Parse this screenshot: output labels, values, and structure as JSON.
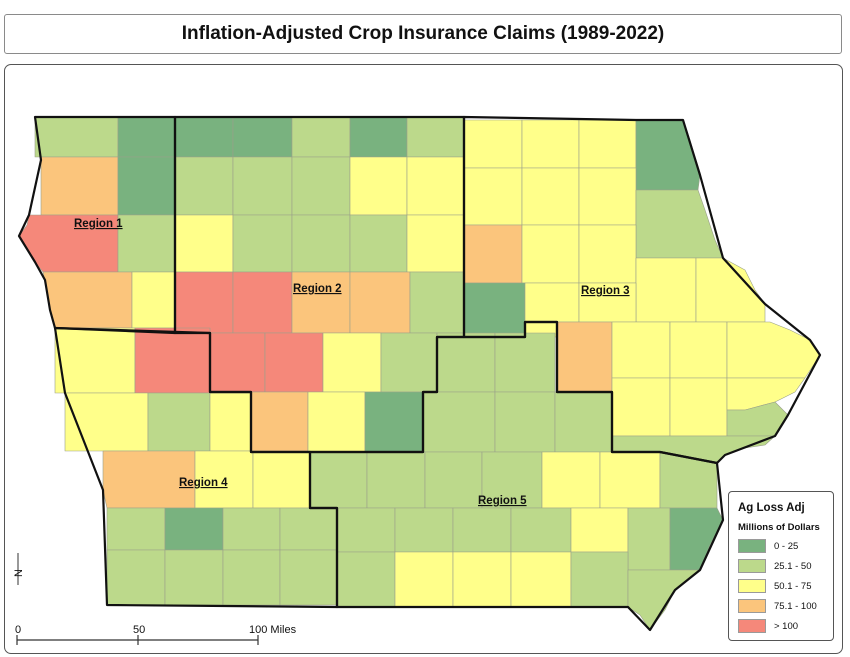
{
  "title": "Inflation-Adjusted Crop Insurance Claims (1989-2022)",
  "regions": [
    {
      "id": "1",
      "label": "Region 1"
    },
    {
      "id": "2",
      "label": "Region 2"
    },
    {
      "id": "3",
      "label": "Region 3"
    },
    {
      "id": "4",
      "label": "Region 4"
    },
    {
      "id": "5",
      "label": "Region 5"
    }
  ],
  "legend": {
    "title": "Ag Loss Adj",
    "subtitle": "Millions of Dollars",
    "classes": [
      {
        "label": "0 - 25",
        "color": "#79b27f"
      },
      {
        "label": "25.1 - 50",
        "color": "#bcd98b"
      },
      {
        "label": "50.1 - 75",
        "color": "#ffff8a"
      },
      {
        "label": "75.1 - 100",
        "color": "#fbc57c"
      },
      {
        "label": "> 100",
        "color": "#f5887a"
      }
    ]
  },
  "scale_bar": {
    "ticks": [
      "0",
      "50",
      "100 Miles"
    ]
  },
  "north_arrow": {
    "label": "N"
  }
}
